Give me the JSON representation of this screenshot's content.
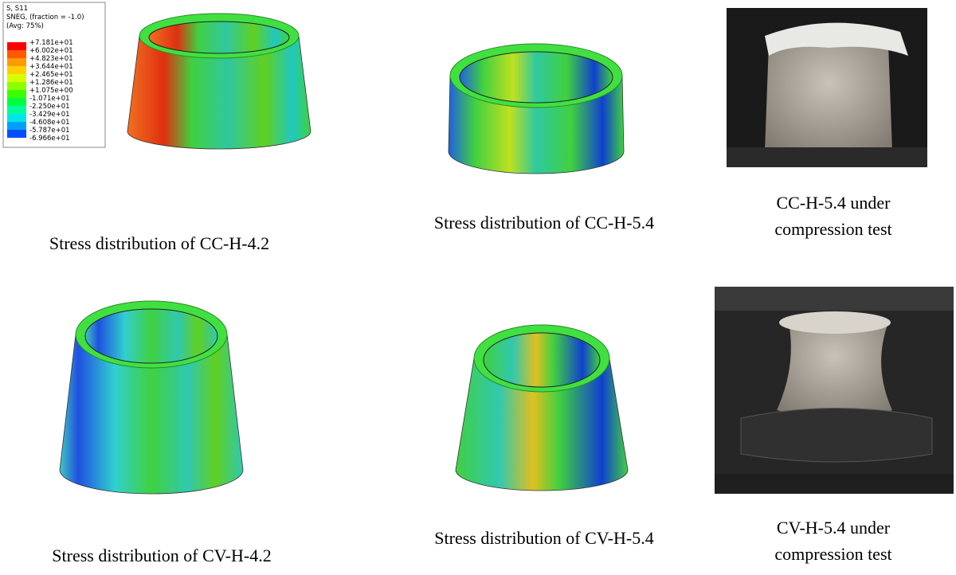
{
  "legend": {
    "header": [
      "S, S11",
      "SNEG, (fraction = -1.0)",
      "(Avg: 75%)"
    ],
    "labels": [
      "+7.181e+01",
      "+6.002e+01",
      "+4.823e+01",
      "+3.644e+01",
      "+2.465e+01",
      "+1.286e+01",
      "+1.075e+00",
      "-1.071e+01",
      "-2.250e+01",
      "-3.429e+01",
      "-4.608e+01",
      "-5.787e+01",
      "-6.966e+01"
    ]
  },
  "panels": [
    {
      "caption": [
        "Stress distribution of CC-H-4.2"
      ]
    },
    {
      "caption": [
        "Stress distribution of CC-H-5.4"
      ]
    },
    {
      "caption": [
        "CC-H-5.4 under",
        "compression test"
      ]
    },
    {
      "caption": [
        "Stress distribution of CV-H-4.2"
      ]
    },
    {
      "caption": [
        "Stress distribution of CV-H-5.4"
      ]
    },
    {
      "caption": [
        "CV-H-5.4 under",
        "compression test"
      ]
    }
  ]
}
